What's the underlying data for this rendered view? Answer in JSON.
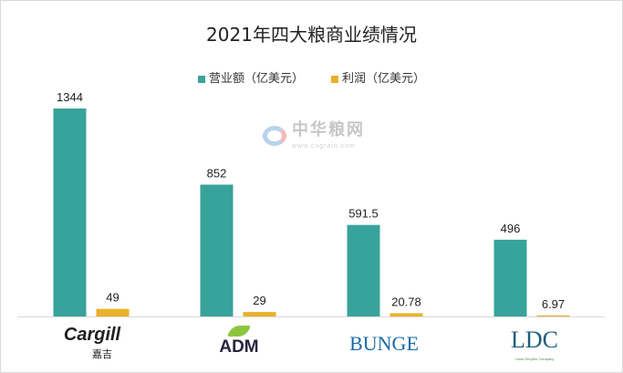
{
  "chart_data": {
    "type": "bar",
    "title": "2021年四大粮商业绩情况",
    "categories": [
      "Cargill 嘉吉",
      "ADM",
      "BUNGE",
      "LDC"
    ],
    "series": [
      {
        "name": "营业额（亿美元）",
        "values": [
          1344,
          852,
          591.5,
          496
        ],
        "labels": [
          "1344",
          "852",
          "591.5",
          "496"
        ],
        "color": "#38a39a"
      },
      {
        "name": "利润（亿美元）",
        "values": [
          49,
          29,
          20.78,
          6.97
        ],
        "labels": [
          "49",
          "29",
          "20.78",
          "6.97"
        ],
        "color": "#eab12a"
      }
    ],
    "ylim": [
      0,
      1344
    ],
    "grid": false,
    "legend_position": "top-center"
  },
  "logos": {
    "cargill": "Cargill",
    "cargill_cn": "嘉吉",
    "adm": "ADM",
    "bunge": "BUNGE",
    "ldc": "LDC",
    "ldc_sub": "Louis Dreyfus Company"
  },
  "watermark": {
    "name": "中华粮网",
    "url": "www.cngrain.com"
  }
}
